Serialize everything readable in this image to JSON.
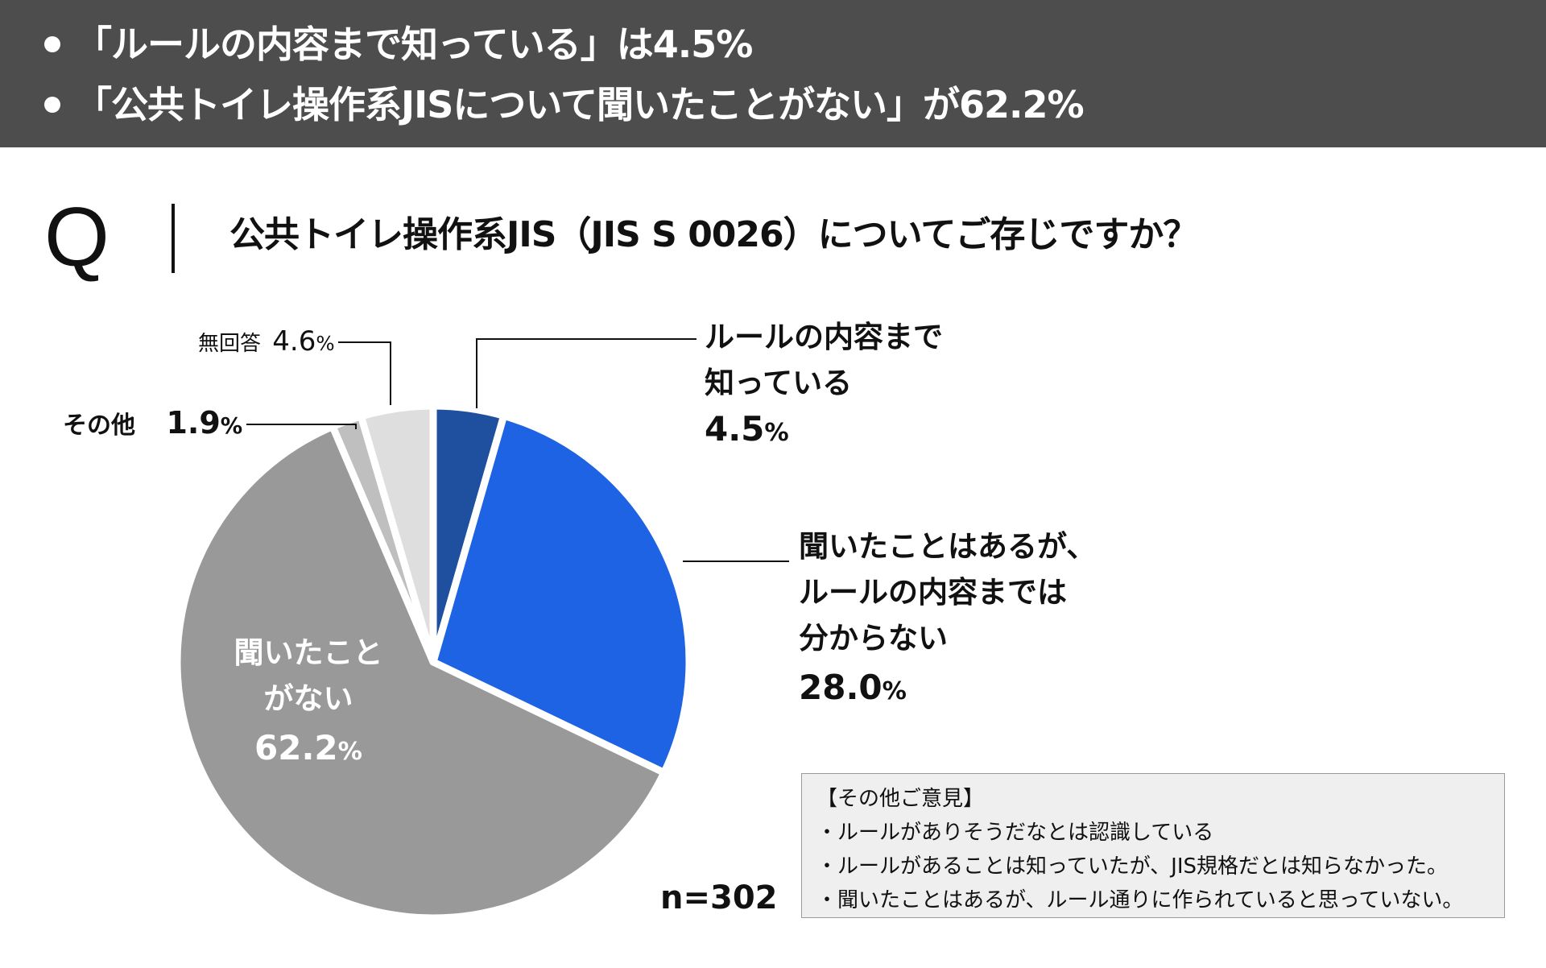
{
  "highlights": [
    "「ルールの内容まで知っている」は4.5%",
    "「公共トイレ操作系JISについて聞いたことがない」が62.2%"
  ],
  "question": {
    "letter": "Q",
    "text": "公共トイレ操作系JIS（JIS S 0026）についてご存じですか？"
  },
  "chart_data": {
    "type": "pie",
    "sample_size": "n=302",
    "slices": [
      {
        "label_lines": [
          "ルールの内容まで",
          "知っている"
        ],
        "value": 4.5,
        "value_text": "4.5",
        "color": "#1f4f9f"
      },
      {
        "label_lines": [
          "聞いたことはあるが、",
          "ルールの内容までは",
          "分からない"
        ],
        "value": 28.0,
        "value_text": "28.0",
        "color": "#1d63e3"
      },
      {
        "label_lines": [
          "聞いたこと",
          "がない"
        ],
        "value": 62.2,
        "value_text": "62.2",
        "color": "#999999"
      },
      {
        "label_lines": [
          "その他"
        ],
        "value": 1.9,
        "value_text": "1.9",
        "color": "#bfbfbf"
      },
      {
        "label_lines": [
          "無回答"
        ],
        "value": 4.6,
        "value_text": "4.6",
        "color": "#dedede"
      }
    ],
    "percent_sign": "%",
    "start_angle_deg": 0,
    "direction": "clockwise"
  },
  "notes": {
    "title": "【その他ご意見】",
    "items": [
      "・ルールがありそうだなとは認識している",
      "・ルールがあることは知っていたが、JIS規格だとは知らなかった。",
      "・聞いたことはあるが、ルール通りに作られていると思っていない。"
    ]
  }
}
